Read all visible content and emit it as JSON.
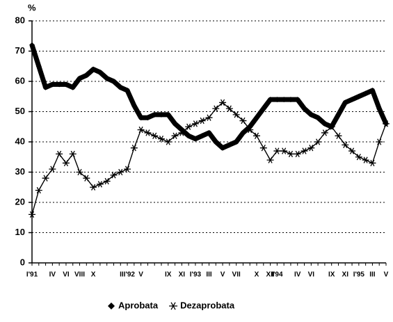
{
  "chart_data": {
    "type": "line",
    "y_label": "%",
    "categories": [
      "I'91",
      null,
      null,
      "IV",
      null,
      "VI",
      null,
      "VIII",
      null,
      "X",
      null,
      null,
      null,
      null,
      "III'92",
      null,
      "V",
      null,
      null,
      null,
      "IX",
      null,
      "XI",
      null,
      "I'93",
      null,
      "III",
      null,
      "V",
      null,
      "VII",
      null,
      null,
      "X",
      null,
      "XII",
      "I'94",
      null,
      null,
      "IV",
      null,
      "VI",
      null,
      null,
      "IX",
      null,
      "XI",
      null,
      "I'95",
      null,
      "III",
      null,
      "V"
    ],
    "series": [
      {
        "name": "Aprobata",
        "color": "#000000",
        "marker": "diamond",
        "values": [
          72,
          65,
          58,
          59,
          59,
          59,
          58,
          61,
          62,
          64,
          63,
          61,
          60,
          58,
          57,
          52,
          48,
          48,
          49,
          49,
          49,
          46,
          44,
          42,
          41,
          42,
          43,
          40,
          38,
          39,
          40,
          43,
          45,
          48,
          51,
          54,
          54,
          54,
          54,
          54,
          51,
          49,
          48,
          46,
          45,
          49,
          53,
          54,
          55,
          56,
          57,
          51,
          46
        ]
      },
      {
        "name": "Dezaprobata",
        "color": "#000000",
        "marker": "star",
        "values": [
          16,
          24,
          28,
          31,
          36,
          33,
          36,
          30,
          28,
          25,
          26,
          27,
          29,
          30,
          31,
          38,
          44,
          43,
          42,
          41,
          40,
          42,
          43,
          45,
          46,
          47,
          48,
          51,
          53,
          51,
          49,
          47,
          44,
          42,
          38,
          34,
          37,
          37,
          36,
          36,
          37,
          38,
          40,
          43,
          45,
          42,
          39,
          37,
          35,
          34,
          33,
          40,
          46
        ]
      }
    ],
    "ylim": [
      0,
      80
    ],
    "yticks": [
      0,
      10,
      20,
      30,
      40,
      50,
      60,
      70,
      80
    ],
    "grid": true,
    "legend": "bottom"
  }
}
